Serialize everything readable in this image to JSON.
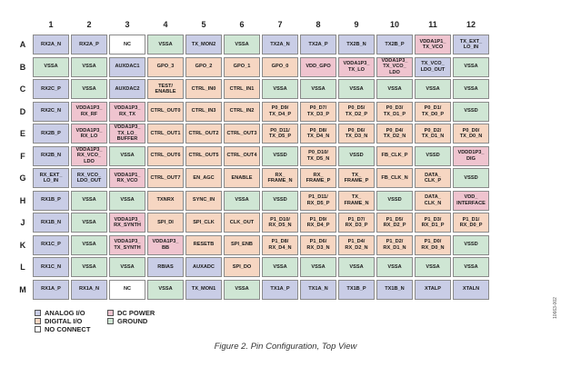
{
  "columns": [
    "1",
    "2",
    "3",
    "4",
    "5",
    "6",
    "7",
    "8",
    "9",
    "10",
    "11",
    "12"
  ],
  "rows": [
    {
      "label": "A",
      "cells": [
        {
          "text": "RX2A_N",
          "type": "analog"
        },
        {
          "text": "RX2A_P",
          "type": "analog"
        },
        {
          "text": "NC",
          "type": "nc"
        },
        {
          "text": "VSSA",
          "type": "ground"
        },
        {
          "text": "TX_MON2",
          "type": "analog"
        },
        {
          "text": "VSSA",
          "type": "ground"
        },
        {
          "text": "TX2A_N",
          "type": "analog"
        },
        {
          "text": "TX2A_P",
          "type": "analog"
        },
        {
          "text": "TX2B_N",
          "type": "analog"
        },
        {
          "text": "TX2B_P",
          "type": "analog"
        },
        {
          "text": "VDDA1P1_\nTX_VCO",
          "type": "power"
        },
        {
          "text": "TX_EXT_\nLO_IN",
          "type": "analog"
        }
      ]
    },
    {
      "label": "B",
      "cells": [
        {
          "text": "VSSA",
          "type": "ground"
        },
        {
          "text": "VSSA",
          "type": "ground"
        },
        {
          "text": "AUXDAC1",
          "type": "analog"
        },
        {
          "text": "GPO_3",
          "type": "digital"
        },
        {
          "text": "GPO_2",
          "type": "digital"
        },
        {
          "text": "GPO_1",
          "type": "digital"
        },
        {
          "text": "GPO_0",
          "type": "digital"
        },
        {
          "text": "VDD_GPO",
          "type": "power"
        },
        {
          "text": "VDDA1P3_\nTX_LO",
          "type": "power"
        },
        {
          "text": "VDDA1P3_\nTX_VCO_\nLDO",
          "type": "power"
        },
        {
          "text": "TX_VCO_\nLDO_OUT",
          "type": "analog"
        },
        {
          "text": "VSSA",
          "type": "ground"
        }
      ]
    },
    {
      "label": "C",
      "cells": [
        {
          "text": "RX2C_P",
          "type": "analog"
        },
        {
          "text": "VSSA",
          "type": "ground"
        },
        {
          "text": "AUXDAC2",
          "type": "analog"
        },
        {
          "text": "TEST/\nENABLE",
          "type": "digital"
        },
        {
          "text": "CTRL_IN0",
          "type": "digital"
        },
        {
          "text": "CTRL_IN1",
          "type": "digital"
        },
        {
          "text": "VSSA",
          "type": "ground"
        },
        {
          "text": "VSSA",
          "type": "ground"
        },
        {
          "text": "VSSA",
          "type": "ground"
        },
        {
          "text": "VSSA",
          "type": "ground"
        },
        {
          "text": "VSSA",
          "type": "ground"
        },
        {
          "text": "VSSA",
          "type": "ground"
        }
      ]
    },
    {
      "label": "D",
      "cells": [
        {
          "text": "RX2C_N",
          "type": "analog"
        },
        {
          "text": "VDDA1P3_\nRX_RF",
          "type": "power"
        },
        {
          "text": "VDDA1P3_\nRX_TX",
          "type": "power"
        },
        {
          "text": "CTRL_OUT0",
          "type": "digital"
        },
        {
          "text": "CTRL_IN3",
          "type": "digital"
        },
        {
          "text": "CTRL_IN2",
          "type": "digital"
        },
        {
          "text": "P0_D9/\nTX_D4_P",
          "type": "digital"
        },
        {
          "text": "P0_D7/\nTX_D3_P",
          "type": "digital"
        },
        {
          "text": "P0_D5/\nTX_D2_P",
          "type": "digital"
        },
        {
          "text": "P0_D3/\nTX_D1_P",
          "type": "digital"
        },
        {
          "text": "P0_D1/\nTX_D0_P",
          "type": "digital"
        },
        {
          "text": "VSSD",
          "type": "ground"
        }
      ]
    },
    {
      "label": "E",
      "cells": [
        {
          "text": "RX2B_P",
          "type": "analog"
        },
        {
          "text": "VDDA1P3_\nRX_LO",
          "type": "power"
        },
        {
          "text": "VDDA1P3_\nTX_LO_\nBUFFER",
          "type": "power"
        },
        {
          "text": "CTRL_OUT1",
          "type": "digital"
        },
        {
          "text": "CTRL_OUT2",
          "type": "digital"
        },
        {
          "text": "CTRL_OUT3",
          "type": "digital"
        },
        {
          "text": "P0_D11/\nTX_D5_P",
          "type": "digital"
        },
        {
          "text": "P0_D8/\nTX_D4_N",
          "type": "digital"
        },
        {
          "text": "P0_D6/\nTX_D3_N",
          "type": "digital"
        },
        {
          "text": "P0_D4/\nTX_D2_N",
          "type": "digital"
        },
        {
          "text": "P0_D2/\nTX_D1_N",
          "type": "digital"
        },
        {
          "text": "P0_D0/\nTX_D0_N",
          "type": "digital"
        }
      ]
    },
    {
      "label": "F",
      "cells": [
        {
          "text": "RX2B_N",
          "type": "analog"
        },
        {
          "text": "VDDA1P3_\nRX_VCO_\nLDO",
          "type": "power"
        },
        {
          "text": "VSSA",
          "type": "ground"
        },
        {
          "text": "CTRL_OUT6",
          "type": "digital"
        },
        {
          "text": "CTRL_OUT5",
          "type": "digital"
        },
        {
          "text": "CTRL_OUT4",
          "type": "digital"
        },
        {
          "text": "VSSD",
          "type": "ground"
        },
        {
          "text": "P0_D10/\nTX_D5_N",
          "type": "digital"
        },
        {
          "text": "VSSD",
          "type": "ground"
        },
        {
          "text": "FB_CLK_P",
          "type": "digital"
        },
        {
          "text": "VSSD",
          "type": "ground"
        },
        {
          "text": "VDDD1P3_\nDIG",
          "type": "power"
        }
      ]
    },
    {
      "label": "G",
      "cells": [
        {
          "text": "RX_EXT_\nLO_IN",
          "type": "analog"
        },
        {
          "text": "RX_VCO_\nLDO_OUT",
          "type": "analog"
        },
        {
          "text": "VDDA1P1_\nRX_VCO",
          "type": "power"
        },
        {
          "text": "CTRL_OUT7",
          "type": "digital"
        },
        {
          "text": "EN_AGC",
          "type": "digital"
        },
        {
          "text": "ENABLE",
          "type": "digital"
        },
        {
          "text": "RX_\nFRAME_N",
          "type": "digital"
        },
        {
          "text": "RX_\nFRAME_P",
          "type": "digital"
        },
        {
          "text": "TX_\nFRAME_P",
          "type": "digital"
        },
        {
          "text": "FB_CLK_N",
          "type": "digital"
        },
        {
          "text": "DATA_\nCLK_P",
          "type": "digital"
        },
        {
          "text": "VSSD",
          "type": "ground"
        }
      ]
    },
    {
      "label": "H",
      "cells": [
        {
          "text": "RX1B_P",
          "type": "analog"
        },
        {
          "text": "VSSA",
          "type": "ground"
        },
        {
          "text": "VSSA",
          "type": "ground"
        },
        {
          "text": "TXNRX",
          "type": "digital"
        },
        {
          "text": "SYNC_IN",
          "type": "digital"
        },
        {
          "text": "VSSA",
          "type": "ground"
        },
        {
          "text": "VSSD",
          "type": "ground"
        },
        {
          "text": "P1_D11/\nRX_D5_P",
          "type": "digital"
        },
        {
          "text": "TX_\nFRAME_N",
          "type": "digital"
        },
        {
          "text": "VSSD",
          "type": "ground"
        },
        {
          "text": "DATA_\nCLK_N",
          "type": "digital"
        },
        {
          "text": "VDD_\nINTERFACE",
          "type": "power"
        }
      ]
    },
    {
      "label": "J",
      "cells": [
        {
          "text": "RX1B_N",
          "type": "analog"
        },
        {
          "text": "VSSA",
          "type": "ground"
        },
        {
          "text": "VDDA1P3_\nRX_SYNTH",
          "type": "power"
        },
        {
          "text": "SPI_DI",
          "type": "digital"
        },
        {
          "text": "SPI_CLK",
          "type": "digital"
        },
        {
          "text": "CLK_OUT",
          "type": "digital"
        },
        {
          "text": "P1_D10/\nRX_D5_N",
          "type": "digital"
        },
        {
          "text": "P1_D9/\nRX_D4_P",
          "type": "digital"
        },
        {
          "text": "P1_D7/\nRX_D3_P",
          "type": "digital"
        },
        {
          "text": "P1_D5/\nRX_D2_P",
          "type": "digital"
        },
        {
          "text": "P1_D3/\nRX_D1_P",
          "type": "digital"
        },
        {
          "text": "P1_D1/\nRX_D0_P",
          "type": "digital"
        }
      ]
    },
    {
      "label": "K",
      "cells": [
        {
          "text": "RX1C_P",
          "type": "analog"
        },
        {
          "text": "VSSA",
          "type": "ground"
        },
        {
          "text": "VDDA1P3_\nTX_SYNTH",
          "type": "power"
        },
        {
          "text": "VDDA1P3_\nBB",
          "type": "power"
        },
        {
          "text": "RESETB",
          "type": "digital"
        },
        {
          "text": "SPI_ENB",
          "type": "digital"
        },
        {
          "text": "P1_D8/\nRX_D4_N",
          "type": "digital"
        },
        {
          "text": "P1_D6/\nRX_D3_N",
          "type": "digital"
        },
        {
          "text": "P1_D4/\nRX_D2_N",
          "type": "digital"
        },
        {
          "text": "P1_D2/\nRX_D1_N",
          "type": "digital"
        },
        {
          "text": "P1_D0/\nRX_D0_N",
          "type": "digital"
        },
        {
          "text": "VSSD",
          "type": "ground"
        }
      ]
    },
    {
      "label": "L",
      "cells": [
        {
          "text": "RX1C_N",
          "type": "analog"
        },
        {
          "text": "VSSA",
          "type": "ground"
        },
        {
          "text": "VSSA",
          "type": "ground"
        },
        {
          "text": "RBIAS",
          "type": "analog"
        },
        {
          "text": "AUXADC",
          "type": "analog"
        },
        {
          "text": "SPI_DO",
          "type": "digital"
        },
        {
          "text": "VSSA",
          "type": "ground"
        },
        {
          "text": "VSSA",
          "type": "ground"
        },
        {
          "text": "VSSA",
          "type": "ground"
        },
        {
          "text": "VSSA",
          "type": "ground"
        },
        {
          "text": "VSSA",
          "type": "ground"
        },
        {
          "text": "VSSA",
          "type": "ground"
        }
      ]
    },
    {
      "label": "M",
      "cells": [
        {
          "text": "RX1A_P",
          "type": "analog"
        },
        {
          "text": "RX1A_N",
          "type": "analog"
        },
        {
          "text": "NC",
          "type": "nc"
        },
        {
          "text": "VSSA",
          "type": "ground"
        },
        {
          "text": "TX_MON1",
          "type": "analog"
        },
        {
          "text": "VSSA",
          "type": "ground"
        },
        {
          "text": "TX1A_P",
          "type": "analog"
        },
        {
          "text": "TX1A_N",
          "type": "analog"
        },
        {
          "text": "TX1B_P",
          "type": "analog"
        },
        {
          "text": "TX1B_N",
          "type": "analog"
        },
        {
          "text": "XTALP",
          "type": "analog"
        },
        {
          "text": "XTALN",
          "type": "analog"
        }
      ]
    }
  ],
  "legend": [
    {
      "label": "ANALOG I/O",
      "type": "analog"
    },
    {
      "label": "DIGITAL I/O",
      "type": "digital"
    },
    {
      "label": "NO CONNECT",
      "type": "nc"
    },
    {
      "label": "DC POWER",
      "type": "power"
    },
    {
      "label": "GROUND",
      "type": "ground"
    }
  ],
  "caption": "Figure 2. Pin Configuration, Top View",
  "figure_id": "10663-002"
}
